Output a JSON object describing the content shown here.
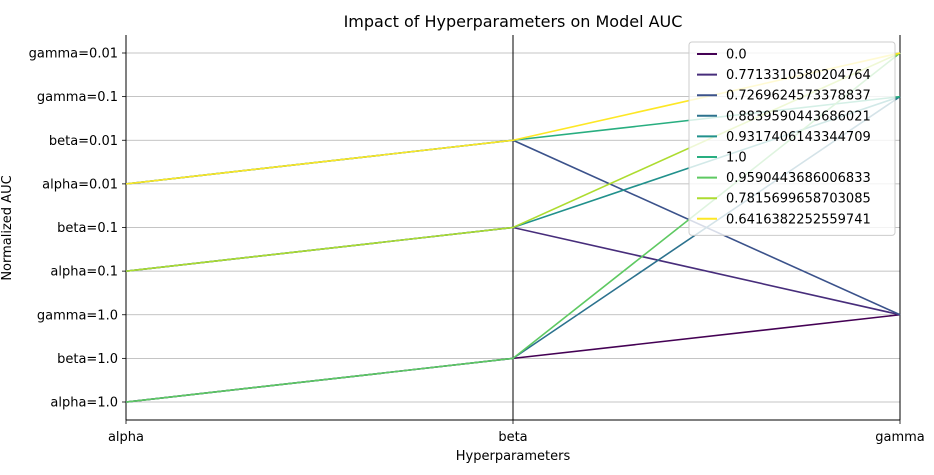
{
  "chart_data": {
    "type": "line",
    "subtype": "parallel-coordinates",
    "title": "Impact of Hyperparameters on Model AUC",
    "xlabel": "Hyperparameters",
    "ylabel": "Normalized AUC",
    "x": [
      "alpha",
      "beta",
      "gamma"
    ],
    "y_categories": [
      "alpha=1.0",
      "beta=1.0",
      "gamma=1.0",
      "alpha=0.1",
      "beta=0.1",
      "alpha=0.01",
      "beta=0.01",
      "gamma=0.1",
      "gamma=0.01"
    ],
    "grid": true,
    "legend_position": "top-right",
    "colormap": "viridis",
    "series": [
      {
        "name": "0.0",
        "color": "#440154",
        "values": [
          "alpha=1.0",
          "beta=1.0",
          "gamma=1.0"
        ]
      },
      {
        "name": "0.7713310580204764",
        "color": "#472d7b",
        "values": [
          "alpha=0.1",
          "beta=0.1",
          "gamma=1.0"
        ]
      },
      {
        "name": "0.7269624573378837",
        "color": "#3b528b",
        "values": [
          "alpha=0.01",
          "beta=0.01",
          "gamma=1.0"
        ]
      },
      {
        "name": "0.8839590443686021",
        "color": "#2c728e",
        "values": [
          "alpha=1.0",
          "beta=1.0",
          "gamma=0.1"
        ]
      },
      {
        "name": "0.9317406143344709",
        "color": "#21918c",
        "values": [
          "alpha=0.1",
          "beta=0.1",
          "gamma=0.1"
        ]
      },
      {
        "name": "1.0",
        "color": "#28ae80",
        "values": [
          "alpha=0.01",
          "beta=0.01",
          "gamma=0.1"
        ]
      },
      {
        "name": "0.9590443686006833",
        "color": "#5ec962",
        "values": [
          "alpha=1.0",
          "beta=1.0",
          "gamma=0.01"
        ]
      },
      {
        "name": "0.7815699658703085",
        "color": "#addc30",
        "values": [
          "alpha=0.1",
          "beta=0.1",
          "gamma=0.01"
        ]
      },
      {
        "name": "0.6416382252559741",
        "color": "#fde725",
        "values": [
          "alpha=0.01",
          "beta=0.01",
          "gamma=0.01"
        ]
      }
    ]
  }
}
